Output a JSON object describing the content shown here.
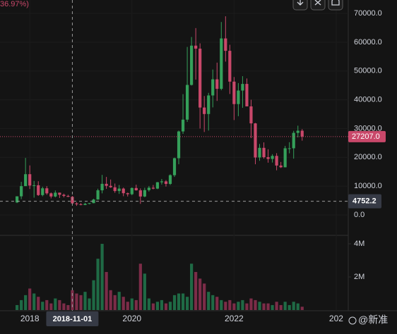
{
  "chart_data": {
    "type": "candlestick",
    "legend_fragment": "36.97%)",
    "x": [
      "2017-10-01",
      "2017-11-01",
      "2017-12-01",
      "2018-01-01",
      "2018-02-01",
      "2018-03-01",
      "2018-04-01",
      "2018-05-01",
      "2018-06-01",
      "2018-07-01",
      "2018-08-01",
      "2018-09-01",
      "2018-10-01",
      "2018-11-01",
      "2018-12-01",
      "2019-01-01",
      "2019-02-01",
      "2019-03-01",
      "2019-04-01",
      "2019-05-01",
      "2019-06-01",
      "2019-07-01",
      "2019-08-01",
      "2019-09-01",
      "2019-10-01",
      "2019-11-01",
      "2019-12-01",
      "2020-01-01",
      "2020-02-01",
      "2020-03-01",
      "2020-04-01",
      "2020-05-01",
      "2020-06-01",
      "2020-07-01",
      "2020-08-01",
      "2020-09-01",
      "2020-10-01",
      "2020-11-01",
      "2020-12-01",
      "2021-01-01",
      "2021-02-01",
      "2021-03-01",
      "2021-04-01",
      "2021-05-01",
      "2021-06-01",
      "2021-07-01",
      "2021-08-01",
      "2021-09-01",
      "2021-10-01",
      "2021-11-01",
      "2021-12-01",
      "2022-01-01",
      "2022-02-01",
      "2022-03-01",
      "2022-04-01",
      "2022-05-01",
      "2022-06-01",
      "2022-07-01",
      "2022-08-01",
      "2022-09-01",
      "2022-10-01",
      "2022-11-01",
      "2022-12-01",
      "2023-01-01",
      "2023-02-01",
      "2023-03-01",
      "2023-04-01",
      "2023-05-01"
    ],
    "open": [
      4340,
      6460,
      10000,
      14150,
      10200,
      10300,
      6900,
      9250,
      7500,
      6400,
      7730,
      7000,
      6600,
      6300,
      4000,
      3700,
      3450,
      3850,
      4100,
      5350,
      8550,
      10800,
      10100,
      9600,
      8300,
      9150,
      7550,
      7200,
      9350,
      8550,
      6400,
      8620,
      9450,
      9140,
      11350,
      11650,
      10780,
      13800,
      19700,
      29000,
      33100,
      45150,
      58800,
      57750,
      37300,
      35050,
      41500,
      47100,
      43800,
      61300,
      57000,
      46300,
      38500,
      43200,
      45500,
      37700,
      31800,
      19950,
      23300,
      20050,
      19450,
      20500,
      17150,
      16550,
      23150,
      23150,
      28500,
      29250
    ],
    "high": [
      6470,
      11500,
      19800,
      17200,
      11800,
      11700,
      9800,
      10000,
      7800,
      8500,
      7760,
      7400,
      7000,
      6600,
      4400,
      4100,
      4200,
      4100,
      5600,
      9100,
      13900,
      13200,
      12300,
      10900,
      10400,
      9500,
      7750,
      9550,
      10500,
      9200,
      9450,
      10050,
      10400,
      11450,
      12470,
      12100,
      14100,
      19900,
      29300,
      41950,
      58350,
      61800,
      64900,
      59600,
      41300,
      42400,
      50500,
      52900,
      67000,
      69000,
      59100,
      47900,
      45800,
      48200,
      47400,
      40000,
      31950,
      24650,
      25200,
      22800,
      21100,
      21450,
      18400,
      23950,
      25250,
      29200,
      31000,
      29800
    ],
    "low": [
      4110,
      5500,
      10400,
      9000,
      6000,
      6600,
      6450,
      7000,
      5750,
      6100,
      5880,
      6100,
      6200,
      3600,
      3150,
      3350,
      3400,
      3700,
      4050,
      5300,
      7500,
      9050,
      9400,
      7700,
      7300,
      6500,
      6400,
      6850,
      8450,
      3850,
      6150,
      8100,
      8900,
      8950,
      10550,
      9850,
      10400,
      13200,
      17600,
      28150,
      32300,
      44950,
      47000,
      30000,
      28800,
      29300,
      37350,
      39600,
      43300,
      53250,
      42000,
      32950,
      34300,
      37200,
      37700,
      26700,
      17600,
      18800,
      19550,
      18150,
      18200,
      15500,
      16300,
      16500,
      21400,
      19550,
      26950,
      25800
    ],
    "close": [
      6460,
      10000,
      14150,
      10200,
      10300,
      6900,
      9250,
      7500,
      6400,
      7730,
      7000,
      6600,
      6300,
      4000,
      3700,
      3450,
      3850,
      4100,
      5350,
      8550,
      10800,
      10100,
      9600,
      8300,
      9150,
      7550,
      7200,
      9350,
      8550,
      6400,
      8620,
      9450,
      9140,
      11350,
      11650,
      10780,
      13800,
      19700,
      29000,
      33100,
      45150,
      58800,
      57750,
      37300,
      35050,
      41500,
      47100,
      43800,
      61300,
      57000,
      46300,
      38500,
      43200,
      45500,
      37700,
      31800,
      19950,
      23300,
      20050,
      19450,
      20500,
      17150,
      16550,
      23150,
      23150,
      28500,
      29250,
      27207
    ],
    "volume": [
      300000,
      600000,
      900000,
      1300000,
      1000000,
      800000,
      500000,
      600000,
      400000,
      700000,
      600000,
      400000,
      300000,
      1200000,
      1000000,
      900000,
      1100000,
      700000,
      1800000,
      3100000,
      4000000,
      2300000,
      1200000,
      900000,
      1100000,
      800000,
      500000,
      700000,
      600000,
      2800000,
      2200000,
      700000,
      400000,
      500000,
      600000,
      400000,
      500000,
      900000,
      1000000,
      1000000,
      800000,
      2800000,
      2300000,
      1900000,
      1600000,
      1100000,
      900000,
      800000,
      600000,
      500000,
      600000,
      400000,
      500000,
      600000,
      400000,
      700000,
      600000,
      500000,
      400000,
      400000,
      300000,
      500000,
      300000,
      500000,
      300000,
      500000,
      400000,
      200000
    ],
    "up_color": "#35a05a",
    "down_color": "#c9486a",
    "volume_up_color": "#1f6a45",
    "volume_down_color": "#7c2c48",
    "xlim": [
      "2017-06-01",
      "2024-03-01"
    ],
    "xticks": [
      {
        "value": "2018-01-01",
        "label": "2018"
      },
      {
        "value": "2020-01-01",
        "label": "2020"
      },
      {
        "value": "2022-01-01",
        "label": "2022"
      },
      {
        "value": "2024-01-01",
        "label": "202"
      }
    ],
    "ylim": [
      -6850,
      74650
    ],
    "yticks": [
      {
        "value": 0,
        "label": "0.0"
      },
      {
        "value": 10000,
        "label": "10000.0"
      },
      {
        "value": 20000,
        "label": "20000.0"
      },
      {
        "value": 30000,
        "label": "30000.0"
      },
      {
        "value": 40000,
        "label": "40000.0"
      },
      {
        "value": 50000,
        "label": "50000.0"
      },
      {
        "value": 60000,
        "label": "60000.0"
      },
      {
        "value": 70000,
        "label": "70000.0"
      }
    ],
    "volume_lim": [
      0,
      4470000
    ],
    "volume_ticks": [
      {
        "value": 2000000,
        "label": "2M"
      },
      {
        "value": 4000000,
        "label": "4M"
      }
    ],
    "last_price": {
      "value": 27207,
      "label": "27207.0"
    },
    "crosshair": {
      "x": "2018-11-01",
      "y": 4752.2
    },
    "watermark": "@新准"
  }
}
